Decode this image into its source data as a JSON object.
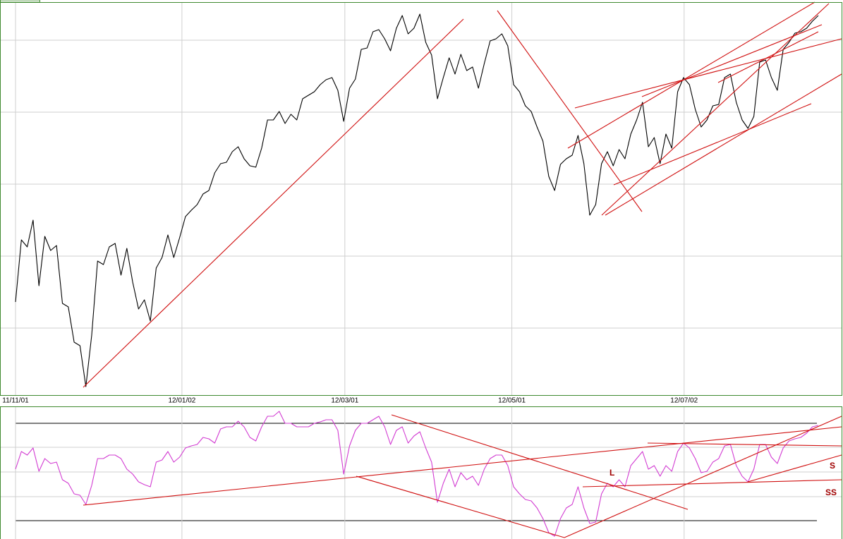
{
  "chart_data": [
    {
      "type": "line",
      "color": "#000000",
      "xlim": [
        0,
        137
      ],
      "ylim": [
        0,
        557
      ],
      "xticks": [
        {
          "value": 0,
          "label": "11/11/01"
        },
        {
          "value": 28.4,
          "label": "12/01/02"
        },
        {
          "value": 56.2,
          "label": "12/03/01"
        },
        {
          "value": 84.7,
          "label": "12/05/01"
        },
        {
          "value": 114.1,
          "label": "12/07/02"
        }
      ],
      "grid": true,
      "values": [
        132,
        220,
        210,
        248,
        155,
        225,
        205,
        212,
        130,
        125,
        75,
        70,
        12,
        85,
        190,
        185,
        210,
        215,
        170,
        208,
        160,
        122,
        135,
        105,
        180,
        195,
        227,
        195,
        223,
        253,
        262,
        270,
        285,
        290,
        315,
        328,
        330,
        345,
        352,
        335,
        325,
        323,
        350,
        390,
        390,
        402,
        385,
        398,
        390,
        420,
        425,
        430,
        440,
        447,
        450,
        432,
        388,
        435,
        448,
        490,
        492,
        515,
        518,
        505,
        488,
        520,
        538,
        512,
        520,
        540,
        500,
        482,
        420,
        450,
        478,
        455,
        483,
        460,
        465,
        435,
        470,
        502,
        505,
        512,
        495,
        440,
        430,
        410,
        402,
        380,
        360,
        310,
        290,
        327,
        335,
        340,
        368,
        328,
        255,
        270,
        328,
        345,
        325,
        348,
        335,
        370,
        390,
        415,
        352,
        365,
        328,
        370,
        350,
        430,
        450,
        440,
        405,
        380,
        390,
        410,
        412,
        450,
        455,
        415,
        390,
        378,
        395,
        472,
        475,
        450,
        432,
        490,
        500,
        513,
        515,
        520,
        530,
        538
      ]
    },
    {
      "type": "line",
      "color": "#d23cd2",
      "xlim": [
        0,
        137
      ],
      "ylim": [
        0,
        188
      ],
      "annotations": [
        "L",
        "S",
        "SS"
      ],
      "values": [
        99,
        124,
        119,
        129,
        96,
        114,
        107,
        109,
        84,
        79,
        64,
        62,
        49,
        76,
        114,
        114,
        119,
        119,
        114,
        99,
        92,
        81,
        77,
        74,
        109,
        112,
        124,
        109,
        116,
        129,
        132,
        134,
        144,
        142,
        136,
        156,
        159,
        159,
        167,
        159,
        144,
        139,
        159,
        174,
        174,
        181,
        164,
        164,
        159,
        159,
        159,
        164,
        166,
        169,
        169,
        154,
        92,
        132,
        154,
        164,
        164,
        169,
        174,
        159,
        134,
        154,
        159,
        136,
        146,
        152,
        129,
        109,
        52,
        79,
        99,
        74,
        94,
        84,
        89,
        76,
        99,
        114,
        119,
        119,
        104,
        74,
        64,
        56,
        54,
        44,
        29,
        9,
        4,
        29,
        44,
        49,
        74,
        44,
        22,
        24,
        64,
        79,
        74,
        84,
        74,
        104,
        114,
        124,
        99,
        104,
        89,
        104,
        96,
        124,
        136,
        129,
        114,
        94,
        96,
        109,
        114,
        132,
        134,
        104,
        89,
        81,
        99,
        134,
        134,
        116,
        107,
        129,
        139,
        142,
        144,
        150,
        159,
        161
      ]
    }
  ]
}
